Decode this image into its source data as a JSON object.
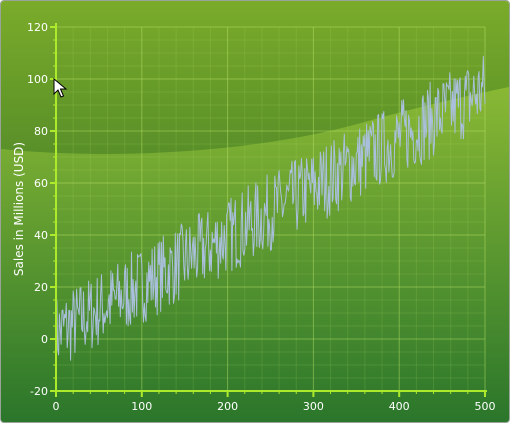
{
  "colors": {
    "bg_top": "#7aab2a",
    "bg_bottom": "#1e5f26",
    "band_light": "#8fbd36",
    "band_dark": "#2d7a2c",
    "axis": "#aeea2c",
    "grid": "#bfe66a",
    "series": "#a9bfdc"
  },
  "cursor_icon": "mouse-pointer-icon",
  "chart_data": {
    "type": "line",
    "title": "",
    "xlabel": "",
    "ylabel": "Sales in Millions (USD)",
    "xlim": [
      0,
      500
    ],
    "ylim": [
      -20,
      120
    ],
    "x_ticks": [
      "0",
      "100",
      "200",
      "300",
      "400",
      "500"
    ],
    "y_ticks": [
      "-20",
      "0",
      "20",
      "40",
      "60",
      "80",
      "100",
      "120"
    ],
    "grid": true,
    "legend": "none",
    "series": [
      {
        "name": "",
        "trend": {
          "x_start": 0,
          "y_start": 2,
          "x_end": 500,
          "y_end": 96
        },
        "noise_amplitude": 15,
        "point_count": 500
      }
    ]
  }
}
